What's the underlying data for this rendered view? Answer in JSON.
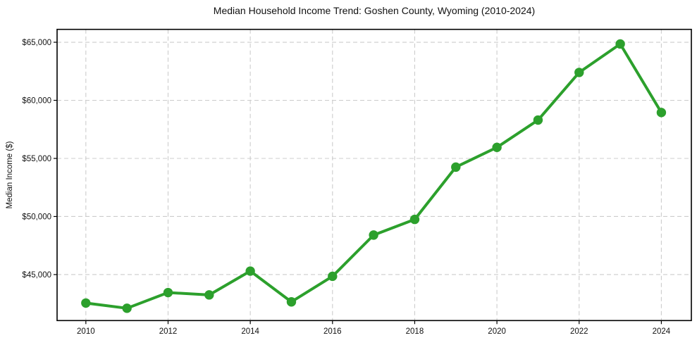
{
  "chart_data": {
    "type": "line",
    "title": "Median Household Income Trend: Goshen County, Wyoming (2010-2024)",
    "xlabel": "",
    "ylabel": "Median Income ($)",
    "x": [
      2010,
      2011,
      2012,
      2013,
      2014,
      2015,
      2016,
      2017,
      2018,
      2019,
      2020,
      2021,
      2022,
      2023,
      2024
    ],
    "series": [
      {
        "name": "Median Household Income",
        "values": [
          42550,
          42100,
          43450,
          43250,
          45300,
          42650,
          44850,
          48400,
          49750,
          54250,
          55950,
          58300,
          62400,
          64850,
          58950
        ]
      }
    ],
    "xlim": [
      2009.3,
      2024.73
    ],
    "ylim": [
      41040,
      66110
    ],
    "xticks": [
      2010,
      2012,
      2014,
      2016,
      2018,
      2020,
      2022,
      2024
    ],
    "yticks": [
      45000,
      50000,
      55000,
      60000,
      65000
    ],
    "ytick_prefix": "$",
    "grid": true,
    "grid_style": "dashed",
    "legend_position": "none",
    "colors": {
      "line": "#2ca02c",
      "marker": "#2ca02c",
      "grid": "#cccccc",
      "spine": "#000000",
      "text": "#111111",
      "background": "#ffffff"
    }
  }
}
